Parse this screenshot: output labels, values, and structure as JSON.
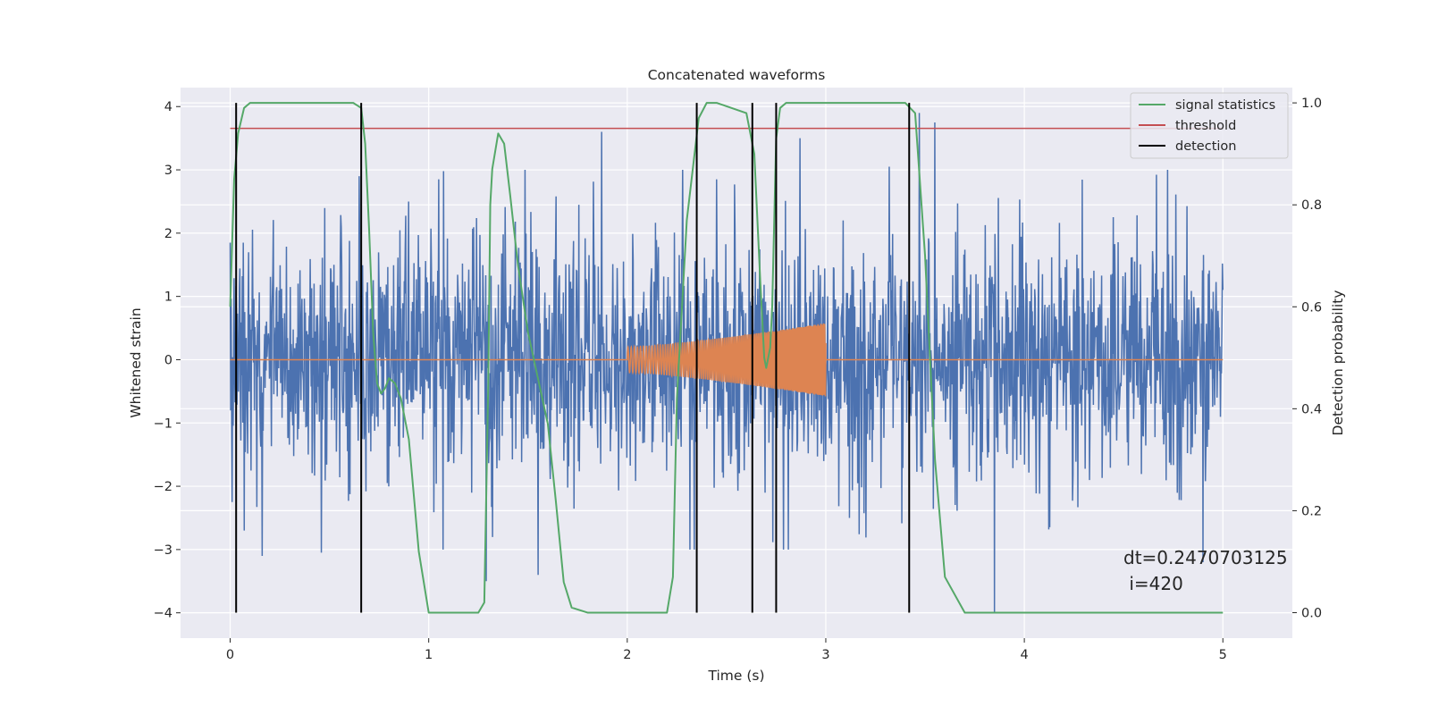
{
  "chart_data": {
    "type": "line",
    "title": "Concatenated waveforms",
    "xlabel": "Time (s)",
    "ylabel": "Whitened strain",
    "y2label": "Detection probability",
    "xlim": [
      -0.25,
      5.35
    ],
    "ylim": [
      -4.4,
      4.3
    ],
    "y2lim": [
      -0.05,
      1.03
    ],
    "x_ticks": [
      0,
      1,
      2,
      3,
      4,
      5
    ],
    "x_tick_labels": [
      "0",
      "1",
      "2",
      "3",
      "4",
      "5"
    ],
    "y_ticks": [
      -4,
      -3,
      -2,
      -1,
      0,
      1,
      2,
      3,
      4
    ],
    "y_tick_labels": [
      "−4",
      "−3",
      "−2",
      "−1",
      "0",
      "1",
      "2",
      "3",
      "4"
    ],
    "y2_ticks": [
      0.0,
      0.2,
      0.4,
      0.6,
      0.8,
      1.0
    ],
    "y2_tick_labels": [
      "0.0",
      "0.2",
      "0.4",
      "0.6",
      "0.8",
      "1.0"
    ],
    "grid": true,
    "legend_position": "top-right",
    "annotation": {
      "line1": "dt=0.2470703125",
      "line2": " i=420",
      "x": 4.5,
      "y": -3.2
    },
    "colors": {
      "whitened": "#4c72b0",
      "template": "#dd8452",
      "signal": "#55a868",
      "threshold": "#c44e52",
      "detection": "#000000",
      "background": "#eaeaf2",
      "grid": "#ffffff"
    },
    "series": [
      {
        "kind": "noise",
        "axis": "left",
        "color": "#4c72b0",
        "x_range": [
          0,
          5
        ],
        "samples": 2048,
        "approx_amplitude": 1.5,
        "spikes": [
          {
            "x": 0.0,
            "y": 1.85
          },
          {
            "x": 0.01,
            "y": -2.25
          },
          {
            "x": 0.07,
            "y": -2.7
          },
          {
            "x": 0.16,
            "y": -3.1
          },
          {
            "x": 0.46,
            "y": -3.05
          },
          {
            "x": 0.65,
            "y": 2.9
          },
          {
            "x": 0.9,
            "y": 2.5
          },
          {
            "x": 1.05,
            "y": 2.85
          },
          {
            "x": 1.29,
            "y": -3.5
          },
          {
            "x": 1.55,
            "y": -3.4
          },
          {
            "x": 1.87,
            "y": 3.6
          },
          {
            "x": 2.45,
            "y": 2.85
          },
          {
            "x": 2.87,
            "y": 3.5
          },
          {
            "x": 3.32,
            "y": 3.05
          },
          {
            "x": 3.47,
            "y": 3.9
          },
          {
            "x": 3.55,
            "y": 3.75
          },
          {
            "x": 3.85,
            "y": -4.0
          },
          {
            "x": 4.9,
            "y": -3.2
          }
        ]
      },
      {
        "kind": "chirp",
        "axis": "left",
        "color": "#dd8452",
        "x_range": [
          0,
          5
        ],
        "chirp_start": 2.0,
        "chirp_end": 3.0,
        "amplitude_start": 0.2,
        "amplitude_end": 0.58
      },
      {
        "name": "signal statistics",
        "axis": "right",
        "color": "#55a868",
        "x": [
          0.0,
          0.02,
          0.04,
          0.07,
          0.1,
          0.2,
          0.5,
          0.62,
          0.66,
          0.68,
          0.7,
          0.72,
          0.74,
          0.76,
          0.78,
          0.8,
          0.83,
          0.86,
          0.9,
          0.95,
          1.0,
          1.1,
          1.25,
          1.28,
          1.3,
          1.31,
          1.32,
          1.35,
          1.38,
          1.41,
          1.45,
          1.5,
          1.6,
          1.64,
          1.68,
          1.72,
          1.8,
          2.0,
          2.2,
          2.23,
          2.25,
          2.3,
          2.36,
          2.4,
          2.45,
          2.6,
          2.64,
          2.67,
          2.69,
          2.7,
          2.72,
          2.73,
          2.75,
          2.77,
          2.8,
          3.0,
          3.4,
          3.45,
          3.5,
          3.55,
          3.6,
          3.7,
          5.0
        ],
        "values": [
          0.6,
          0.85,
          0.94,
          0.99,
          1.0,
          1.0,
          1.0,
          1.0,
          0.99,
          0.92,
          0.75,
          0.55,
          0.45,
          0.43,
          0.44,
          0.46,
          0.45,
          0.42,
          0.34,
          0.12,
          0.0,
          0.0,
          0.0,
          0.02,
          0.45,
          0.8,
          0.87,
          0.94,
          0.92,
          0.82,
          0.68,
          0.55,
          0.37,
          0.22,
          0.06,
          0.01,
          0.0,
          0.0,
          0.0,
          0.07,
          0.42,
          0.77,
          0.97,
          1.0,
          1.0,
          0.98,
          0.9,
          0.65,
          0.5,
          0.48,
          0.52,
          0.6,
          0.93,
          0.99,
          1.0,
          1.0,
          1.0,
          0.98,
          0.7,
          0.3,
          0.07,
          0.0,
          0.0
        ]
      },
      {
        "name": "threshold",
        "axis": "right",
        "color": "#c44e52",
        "x": [
          0,
          5
        ],
        "values": [
          0.95,
          0.95
        ]
      },
      {
        "name": "detection",
        "axis": "right",
        "color": "#000000",
        "vlines": [
          0.03,
          0.66,
          2.35,
          2.63,
          2.75,
          3.42
        ]
      }
    ]
  }
}
